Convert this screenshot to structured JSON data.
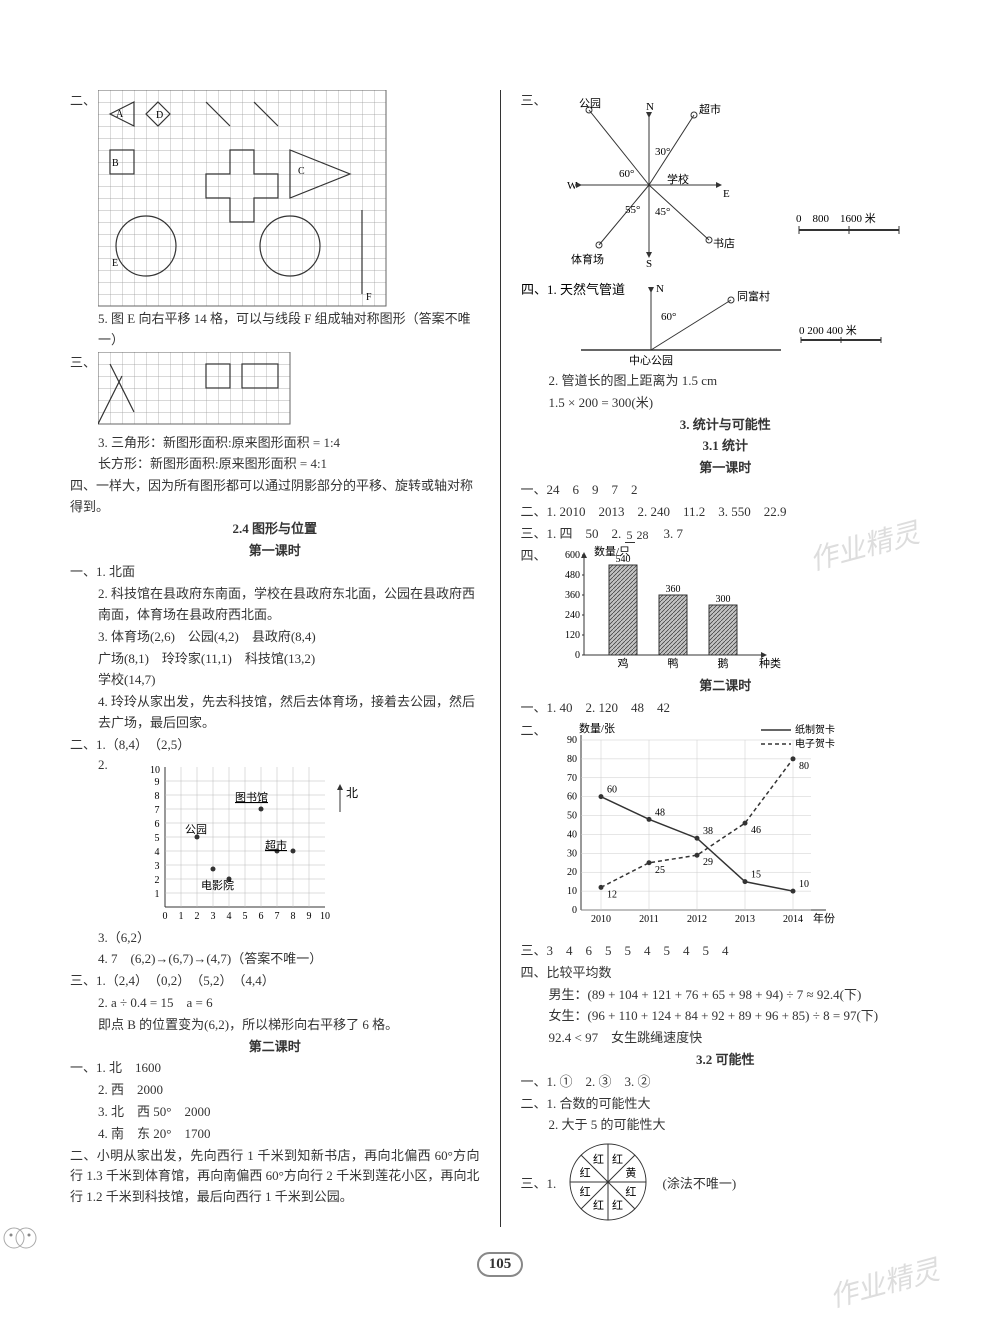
{
  "left": {
    "sec2_label": "二、",
    "grid_a": {
      "labels": [
        "A",
        "D",
        "B",
        "C",
        "E",
        "F"
      ],
      "cols": 24,
      "rows": 18
    },
    "q5": "5. 图 E 向右平移 14 格，可以与线段 F 组成轴对称图形（答案不唯一）",
    "sec3_label": "三、",
    "grid_b": {
      "cols": 16,
      "rows": 6
    },
    "q3": "3. 三角形：新图形面积:原来图形面积 = 1:4",
    "q3b": "长方形：新图形面积:原来图形面积 = 4:1",
    "sec4": "四、一样大，因为所有图形都可以通过阴影部分的平移、旋转或轴对称得到。",
    "h24": "2.4 图形与位置",
    "h24a": "第一课时",
    "a1_1": "一、1. 北面",
    "a1_2": "2. 科技馆在县政府东南面，学校在县政府东北面，公园在县政府西南面，体育场在县政府西北面。",
    "a1_3": "3. 体育场(2,6)　公园(4,2)　县政府(8,4)",
    "a1_3b": "广场(8,1)　玲玲家(11,1)　科技馆(13,2)",
    "a1_3c": "学校(14,7)",
    "a1_4": "4. 玲玲从家出发，先去科技馆，然后去体育场，接着去公园，然后去广场，最后回家。",
    "a2_1": "二、1.（8,4）　（2,5）",
    "a2_2": "2.",
    "coord_labels": {
      "north": "北",
      "library": "图书馆",
      "park": "公园",
      "market": "超市",
      "cinema": "电影院",
      "xmax": 10,
      "ymax": 10
    },
    "a2_3": "3.（6,2）",
    "a2_4": "4. 7　(6,2)→(6,7)→(4,7)（答案不唯一）",
    "a3": "三、1.（2,4）　（0,2）　（5,2）　（4,4）",
    "a3_2": "2. a ÷ 0.4 = 15　a = 6",
    "a3_2b": "即点 B 的位置变为(6,2)，所以梯形向右平移了 6 格。",
    "h24b": "第二课时",
    "b1_1": "一、1. 北　1600",
    "b1_2": "2. 西　2000",
    "b1_3": "3. 北　西 50°　2000",
    "b1_4": "4. 南　东 20°　1700",
    "b2": "二、小明从家出发，先向西行 1 千米到知新书店，再向北偏西 60°方向行 1.3 千米到体育馆，再向南偏西 60°方向行 2 千米到莲花小区，再向北行 1.2 千米到科技馆，最后向西行 1 千米到公园。"
  },
  "right": {
    "sec3_label": "三、",
    "compass": {
      "park": "公园",
      "market": "超市",
      "school": "学校",
      "pe": "体育场",
      "shop": "书店",
      "N": "N",
      "S": "S",
      "W": "W",
      "E": "E",
      "a1": "30°",
      "a2": "60°",
      "a3": "55°",
      "a4": "45°",
      "scale": "0　800　1600 米"
    },
    "sec4_1": "四、1. 天然气管道",
    "village": "同富村",
    "cpark": "中心公园",
    "ang60": "60°",
    "scale2": "0 200 400 米",
    "sec4_2": "2. 管道长的图上距离为 1.5 cm",
    "sec4_2b": "1.5 × 200 = 300(米)",
    "h3": "3. 统计与可能性",
    "h31": "3.1 统计",
    "h31a": "第一课时",
    "c1": "一、24　6　9　7　2",
    "c2": "二、1. 2010　2013　2. 240　11.2　3. 550　22.9",
    "c3": "三、1. 四　50　2. ",
    "frac_n": "5",
    "frac_d": "28",
    "c3b": "　3. 7",
    "c4": "四、",
    "bar": {
      "ylabel": "数量/只",
      "xlabel": "种类",
      "yticks": [
        0,
        120,
        240,
        360,
        480,
        600
      ],
      "cats": [
        "鸡",
        "鸭",
        "鹅"
      ],
      "vals": [
        540,
        360,
        300
      ],
      "colors": [
        "#888",
        "#888",
        "#888"
      ]
    },
    "h31b": "第二课时",
    "d1": "一、1. 40　2. 120　48　42",
    "d2": "二、",
    "linechart": {
      "ylabel": "数量/张",
      "legend1": "纸制贺卡",
      "legend2": "电子贺卡",
      "yticks": [
        0,
        10,
        20,
        30,
        40,
        50,
        60,
        70,
        80,
        90
      ],
      "xcats": [
        "2010",
        "2011",
        "2012",
        "2013",
        "2014"
      ],
      "xlabel": "年份",
      "s1": [
        60,
        48,
        38,
        15,
        10
      ],
      "s2": [
        12,
        25,
        29,
        46,
        80
      ],
      "annot_s1": [
        "60",
        "48",
        "38",
        "15",
        "10"
      ],
      "annot_s2": [
        "12",
        "25",
        "29",
        "46",
        "80"
      ]
    },
    "d3": "三、3　4　6　5　5　4　5　4　5　4",
    "d4": "四、比较平均数",
    "d4a": "男生：(89 + 104 + 121 + 76 + 65 + 98 + 94) ÷ 7 ≈ 92.4(下)",
    "d4b": "女生：(96 + 110 + 124 + 84 + 92 + 89 + 96 + 85) ÷ 8 = 97(下)",
    "d4c": "92.4 < 97　女生跳绳速度快",
    "h32": "3.2 可能性",
    "e1": "一、1. ①　2. ③　3. ②",
    "e2_1": "二、1. 合数的可能性大",
    "e2_2": "2. 大于 5 的可能性大",
    "e3": "三、1.",
    "spinner": {
      "labels": [
        "红",
        "黄",
        "红",
        "红",
        "红",
        "红",
        "红",
        "红"
      ],
      "note": "(涂法不唯一)"
    }
  },
  "pagenum": "105"
}
